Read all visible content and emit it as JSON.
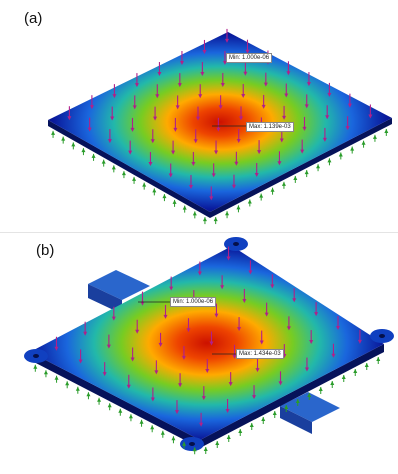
{
  "figure": {
    "panels": [
      {
        "label": "(a)",
        "annotations": [
          {
            "text": "Min: 1.000e-06"
          },
          {
            "text": "Max: 1.139e-03"
          }
        ]
      },
      {
        "label": "(b)",
        "annotations": [
          {
            "text": "Min: 1.000e-06"
          },
          {
            "text": "Max: 1.434e-03"
          }
        ]
      }
    ],
    "colors": {
      "max": "#cc1100",
      "mid_high": "#ffaa00",
      "mid": "#44cc33",
      "mid_low": "#22aaee",
      "min": "#0a1a9c",
      "load_arrow": "#b0208a",
      "fixture_arrow": "#2a9c2a"
    }
  }
}
